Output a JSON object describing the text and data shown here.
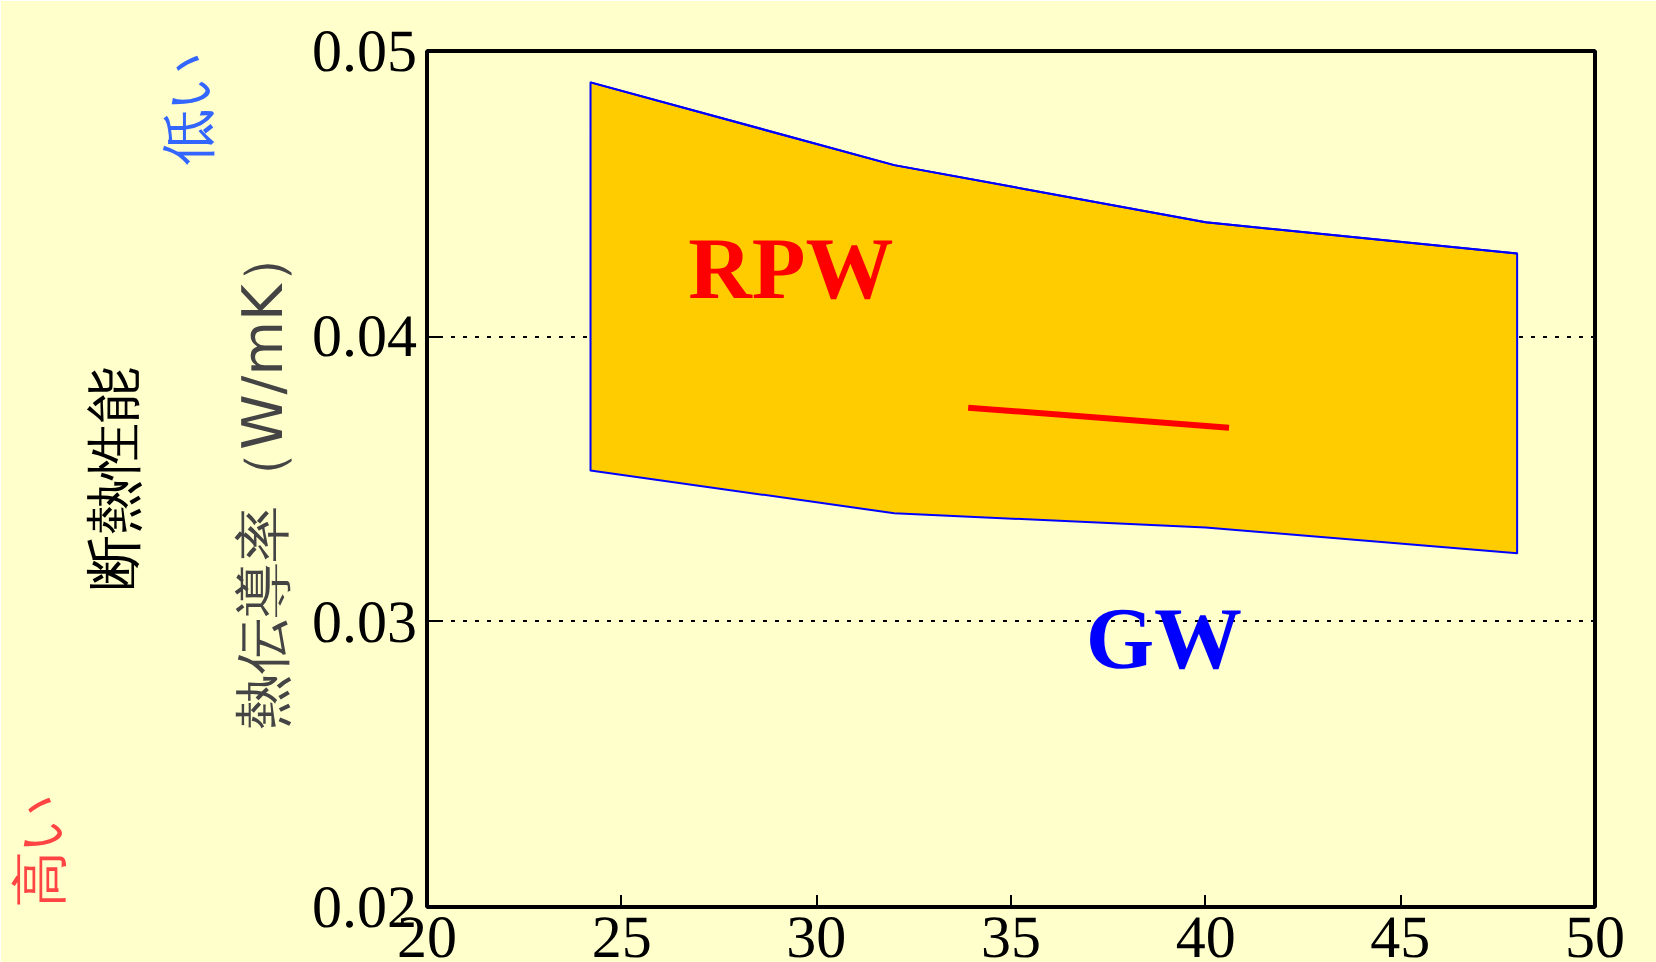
{
  "chart_data": {
    "type": "line",
    "xlim": [
      20,
      50
    ],
    "ylim": [
      0.02,
      0.05
    ],
    "xticks": [
      20,
      25,
      30,
      35,
      40,
      45,
      50
    ],
    "yticks": [
      0.02,
      0.03,
      0.04,
      0.05
    ],
    "ylabel": "熱伝導率（W/mK）",
    "annotations": [
      "低い",
      "断熱性能",
      "高い"
    ],
    "grid": "y",
    "line_style": "solid",
    "series": [
      {
        "name": "GW",
        "color": "#0000ff",
        "x": [
          24.2,
          32,
          40,
          48
        ],
        "values": [
          0.0489,
          0.046,
          0.044,
          0.0429
        ],
        "lower": [
          0.0353,
          0.0338,
          0.0333,
          0.0324
        ],
        "upper": [
          0.0489,
          0.046,
          0.044,
          0.0429
        ]
      },
      {
        "name": "RPW",
        "color": "#ff0000",
        "x": [
          33.9,
          40.6
        ],
        "values": [
          0.0375,
          0.0368
        ]
      }
    ]
  }
}
